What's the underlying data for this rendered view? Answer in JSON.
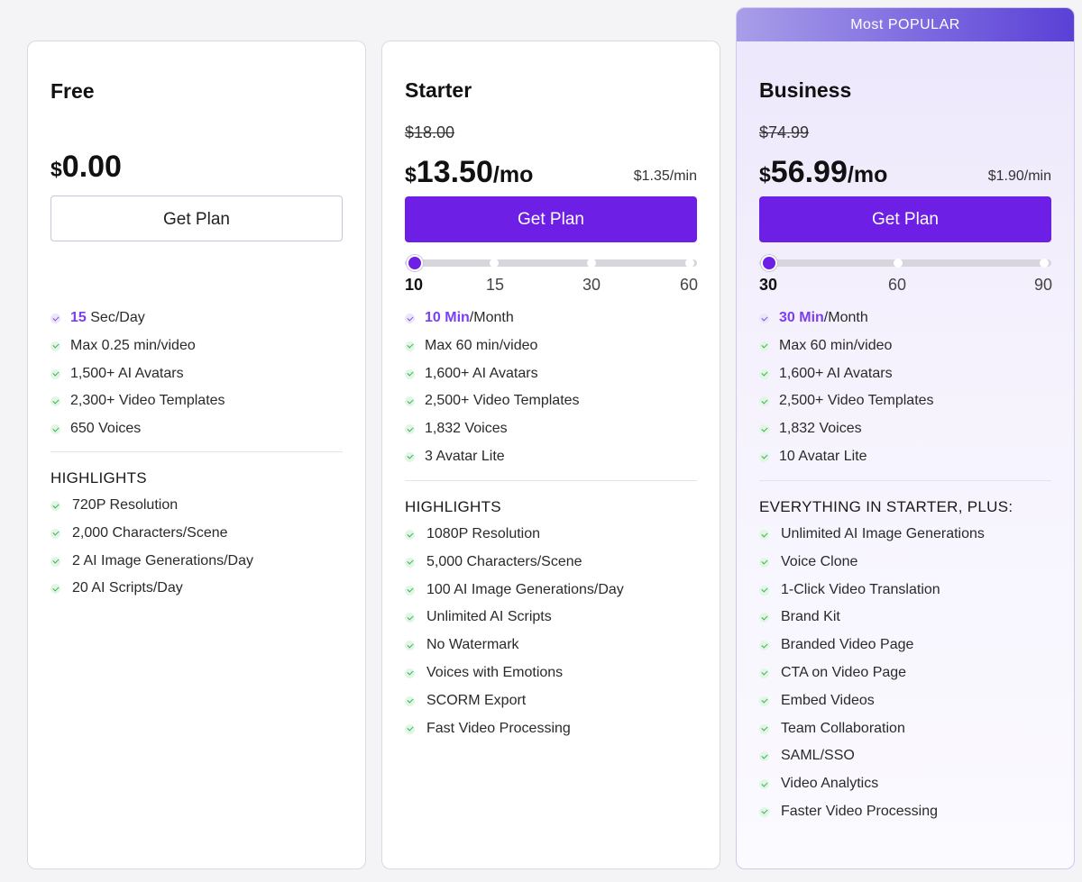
{
  "colors": {
    "accent": "#6e1fe6",
    "highlight_text": "#7b3ff2",
    "check": "#2fb350"
  },
  "plans": [
    {
      "name": "Free",
      "currency": "$",
      "price": "0.00",
      "button": "Get Plan",
      "features": [
        {
          "hl": "15",
          "rest": " Sec/Day"
        },
        {
          "text": "Max 0.25 min/video"
        },
        {
          "text": "1,500+ AI Avatars"
        },
        {
          "text": "2,300+ Video Templates"
        },
        {
          "text": "650 Voices"
        }
      ],
      "highlights_title": "HIGHLIGHTS",
      "highlights": [
        "720P Resolution",
        "2,000 Characters/Scene",
        "2 AI Image Generations/Day",
        "20 AI Scripts/Day"
      ]
    },
    {
      "name": "Starter",
      "old_price": "$18.00",
      "currency": "$",
      "price": "13.50",
      "per": "/mo",
      "per_min": "$1.35/min",
      "button": "Get Plan",
      "slider": {
        "labels": [
          "10",
          "15",
          "30",
          "60"
        ],
        "selected": "10"
      },
      "features": [
        {
          "hl": "10 Min",
          "rest": "/Month"
        },
        {
          "text": "Max 60 min/video"
        },
        {
          "text": "1,600+ AI Avatars"
        },
        {
          "text": "2,500+ Video Templates"
        },
        {
          "text": "1,832 Voices"
        },
        {
          "text": "3 Avatar Lite"
        }
      ],
      "highlights_title": "HIGHLIGHTS",
      "highlights": [
        "1080P Resolution",
        "5,000 Characters/Scene",
        "100 AI Image Generations/Day",
        "Unlimited AI Scripts",
        "No Watermark",
        "Voices with Emotions",
        "SCORM Export",
        "Fast Video Processing"
      ]
    },
    {
      "banner": "Most POPULAR",
      "name": "Business",
      "old_price": "$74.99",
      "currency": "$",
      "price": "56.99",
      "per": "/mo",
      "per_min": "$1.90/min",
      "button": "Get Plan",
      "slider": {
        "labels": [
          "30",
          "60",
          "90"
        ],
        "selected": "30"
      },
      "features": [
        {
          "hl": "30 Min",
          "rest": "/Month"
        },
        {
          "text": "Max 60 min/video"
        },
        {
          "text": "1,600+ AI Avatars"
        },
        {
          "text": "2,500+ Video Templates"
        },
        {
          "text": "1,832 Voices"
        },
        {
          "text": "10 Avatar Lite"
        }
      ],
      "highlights_title": "EVERYTHING IN STARTER, PLUS:",
      "highlights": [
        "Unlimited AI Image Generations",
        "Voice Clone",
        "1-Click Video Translation",
        "Brand Kit",
        "Branded Video Page",
        "CTA on Video Page",
        "Embed Videos",
        "Team Collaboration",
        "SAML/SSO",
        "Video Analytics",
        "Faster Video Processing"
      ]
    }
  ]
}
